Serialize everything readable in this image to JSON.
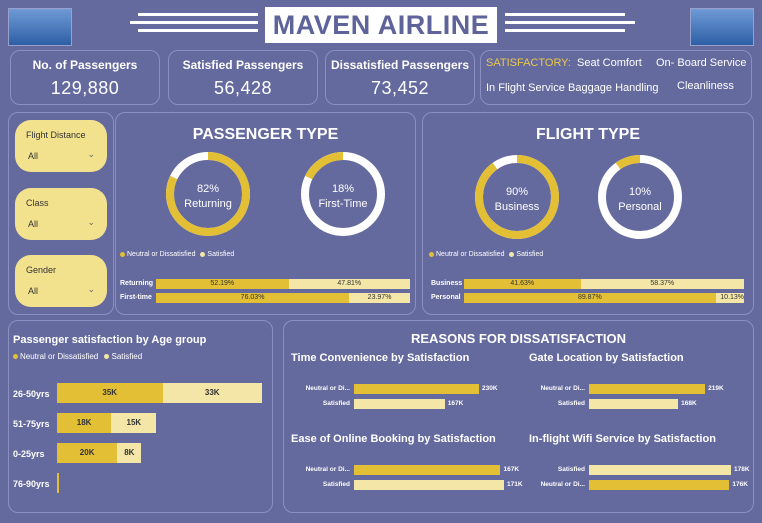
{
  "header": {
    "title": "MAVEN AIRLINE"
  },
  "colors": {
    "background": "#656a9e",
    "gold": "#e2bf35",
    "cream": "#f3e6a6",
    "white": "#ffffff"
  },
  "kpis": [
    {
      "title": "No. of Passengers",
      "value": "129,880"
    },
    {
      "title": "Satisfied Passengers",
      "value": "56,428"
    },
    {
      "title": "Dissatisfied Passengers",
      "value": "73,452"
    }
  ],
  "satisfactory": {
    "label": "SATISFACTORY:",
    "items": [
      "Seat Comfort",
      "On- Board Service",
      "In Flight Service",
      "Baggage Handling",
      "Cleanliness"
    ]
  },
  "slicers": [
    {
      "label": "Flight Distance",
      "value": "All"
    },
    {
      "label": "Class",
      "value": "All"
    },
    {
      "label": "Gender",
      "value": "All"
    }
  ],
  "passenger_type": {
    "title": "PASSENGER TYPE",
    "legend": [
      "Neutral or Dissatisfied",
      "Satisfied"
    ],
    "donuts": [
      {
        "pct_text": "82%",
        "label": "Returning",
        "fraction": 0.82
      },
      {
        "pct_text": "18%",
        "label": "First-Time",
        "fraction": 0.18
      }
    ]
  },
  "flight_type": {
    "title": "FLIGHT TYPE",
    "legend": [
      "Neutral or Dissatisfied",
      "Satisfied"
    ],
    "donuts": [
      {
        "pct_text": "90%",
        "label": "Business",
        "fraction": 0.9
      },
      {
        "pct_text": "10%",
        "label": "Personal",
        "fraction": 0.1
      }
    ]
  },
  "age_group": {
    "title": "Passenger satisfaction by Age group",
    "legend": [
      "Neutral or Dissatisfied",
      "Satisfied"
    ]
  },
  "reasons": {
    "title": "REASONS FOR DISSATISFACTION",
    "subtitles": [
      "Time Convenience by Satisfaction",
      "Gate Location by Satisfaction",
      "Ease of Online Booking by Satisfaction",
      "In-flight Wifi Service by Satisfaction"
    ]
  },
  "chart_data": [
    {
      "type": "bar",
      "stacked": "percent",
      "name": "passenger_type_bars",
      "categories": [
        "Returning",
        "First-time"
      ],
      "series": [
        {
          "name": "Neutral or Dissatisfied",
          "values": [
            52.19,
            76.03
          ],
          "labels": [
            "52.19%",
            "76.03%"
          ]
        },
        {
          "name": "Satisfied",
          "values": [
            47.81,
            23.97
          ],
          "labels": [
            "47.81%",
            "23.97%"
          ]
        }
      ]
    },
    {
      "type": "bar",
      "stacked": "percent",
      "name": "flight_type_bars",
      "categories": [
        "Business",
        "Personal"
      ],
      "series": [
        {
          "name": "Neutral or Dissatisfied",
          "values": [
            41.63,
            89.87
          ],
          "labels": [
            "41.63%",
            "89.87%"
          ]
        },
        {
          "name": "Satisfied",
          "values": [
            58.37,
            10.13
          ],
          "labels": [
            "58.37%",
            "10.13%"
          ]
        }
      ]
    },
    {
      "type": "bar",
      "stacked": true,
      "name": "age_group",
      "categories": [
        "26-50yrs",
        "51-75yrs",
        "0-25yrs",
        "76-90yrs"
      ],
      "series": [
        {
          "name": "Neutral or Dissatisfied",
          "values": [
            35000,
            18000,
            20000,
            300
          ],
          "labels": [
            "35K",
            "18K",
            "20K",
            ""
          ]
        },
        {
          "name": "Satisfied",
          "values": [
            33000,
            15000,
            8000,
            0
          ],
          "labels": [
            "33K",
            "15K",
            "8K",
            ""
          ]
        }
      ],
      "xlim": [
        0,
        70000
      ]
    },
    {
      "type": "bar",
      "name": "time_convenience",
      "categories": [
        "Neutral or Di...",
        "Satisfied"
      ],
      "values": [
        230000,
        167000
      ],
      "labels": [
        "230K",
        "167K"
      ],
      "xlim": [
        0,
        230000
      ]
    },
    {
      "type": "bar",
      "name": "gate_location",
      "categories": [
        "Neutral or Di...",
        "Satisfied"
      ],
      "values": [
        219000,
        168000
      ],
      "labels": [
        "219K",
        "168K"
      ],
      "xlim": [
        0,
        230000
      ]
    },
    {
      "type": "bar",
      "name": "ease_online_booking",
      "categories": [
        "Neutral or Di...",
        "Satisfied"
      ],
      "values": [
        167000,
        171000
      ],
      "labels": [
        "167K",
        "171K"
      ],
      "xlim": [
        0,
        171000
      ]
    },
    {
      "type": "bar",
      "name": "inflight_wifi",
      "categories": [
        "Satisfied",
        "Neutral or Di..."
      ],
      "values": [
        178000,
        176000
      ],
      "labels": [
        "178K",
        "176K"
      ],
      "xlim": [
        0,
        178000
      ]
    }
  ]
}
